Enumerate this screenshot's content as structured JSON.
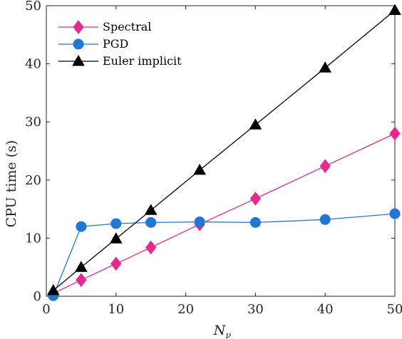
{
  "chart_data": {
    "type": "line",
    "xlabel": "N",
    "xlabel_sub": "ν",
    "ylabel": "CPU time (s)",
    "xlim": [
      0,
      50
    ],
    "ylim": [
      0,
      50
    ],
    "xticks": [
      0,
      10,
      20,
      30,
      40,
      50
    ],
    "yticks": [
      0,
      10,
      20,
      30,
      40,
      50
    ],
    "legend_position": "top-left",
    "series": [
      {
        "name": "Spectral",
        "color": "#e8288a",
        "marker": "diamond",
        "x": [
          1,
          5,
          10,
          15,
          22,
          30,
          40,
          50
        ],
        "y": [
          0.5,
          2.8,
          5.6,
          8.4,
          12.4,
          16.8,
          22.4,
          28.0
        ]
      },
      {
        "name": "PGD",
        "color": "#1f77d6",
        "marker": "circle",
        "x": [
          1,
          5,
          10,
          15,
          22,
          30,
          40,
          50
        ],
        "y": [
          0.1,
          12.0,
          12.5,
          12.7,
          12.8,
          12.7,
          13.2,
          14.2
        ]
      },
      {
        "name": "Euler implicit",
        "color": "#000000",
        "marker": "triangle",
        "x": [
          1,
          5,
          10,
          15,
          22,
          30,
          40,
          50
        ],
        "y": [
          1.0,
          5.0,
          9.9,
          14.8,
          21.7,
          29.5,
          39.3,
          49.2
        ]
      }
    ]
  }
}
